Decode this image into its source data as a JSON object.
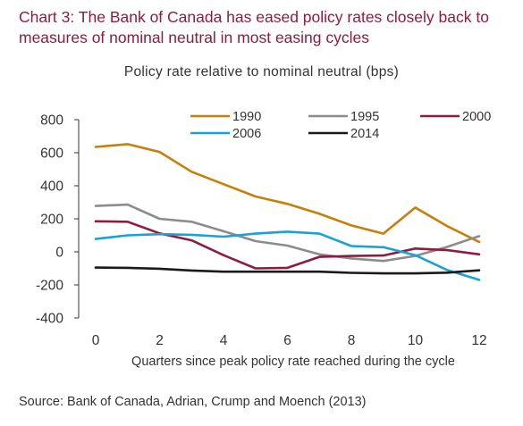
{
  "title": "Chart 3: The Bank of Canada has eased policy rates closely back to measures of nominal neutral in most easing cycles",
  "source": "Source: Bank of Canada, Adrian, Crump and Moench (2013)",
  "chart_data": {
    "type": "line",
    "title": "Policy rate relative to nominal neutral (bps)",
    "xlabel": "Quarters since peak policy rate reached during the cycle",
    "ylabel": "",
    "xlim": [
      -0.5,
      12.3
    ],
    "ylim": [
      -400,
      800
    ],
    "xticks": [
      0,
      2,
      4,
      6,
      8,
      10,
      12
    ],
    "yticks": [
      -400,
      -200,
      0,
      200,
      400,
      600,
      800
    ],
    "ytick_labels": [
      "-400",
      "-200",
      "0",
      "200",
      "400",
      "600",
      "800"
    ],
    "grid": false,
    "legend_position": "top-right",
    "x": [
      0,
      1,
      2,
      3,
      4,
      5,
      6,
      7,
      8,
      9,
      10,
      11,
      12
    ],
    "series": [
      {
        "name": "1990",
        "color": "#c87f0a",
        "values": [
          635,
          652,
          605,
          485,
          410,
          335,
          290,
          230,
          160,
          110,
          268,
          155,
          60
        ]
      },
      {
        "name": "1995",
        "color": "#8c8c8c",
        "values": [
          278,
          286,
          200,
          182,
          125,
          65,
          38,
          -15,
          -40,
          -55,
          -25,
          30,
          95
        ]
      },
      {
        "name": "2000",
        "color": "#8b1e3f",
        "values": [
          185,
          182,
          112,
          70,
          -20,
          -100,
          -97,
          -30,
          -25,
          -22,
          20,
          10,
          -15
        ]
      },
      {
        "name": "2006",
        "color": "#1ba1d4",
        "values": [
          78,
          100,
          107,
          103,
          92,
          110,
          122,
          110,
          35,
          28,
          -20,
          -110,
          -170
        ]
      },
      {
        "name": "2014",
        "color": "#1a1a1a",
        "values": [
          -95,
          -97,
          -102,
          -113,
          -120,
          -120,
          -120,
          -120,
          -127,
          -130,
          -130,
          -126,
          -112
        ]
      }
    ]
  }
}
